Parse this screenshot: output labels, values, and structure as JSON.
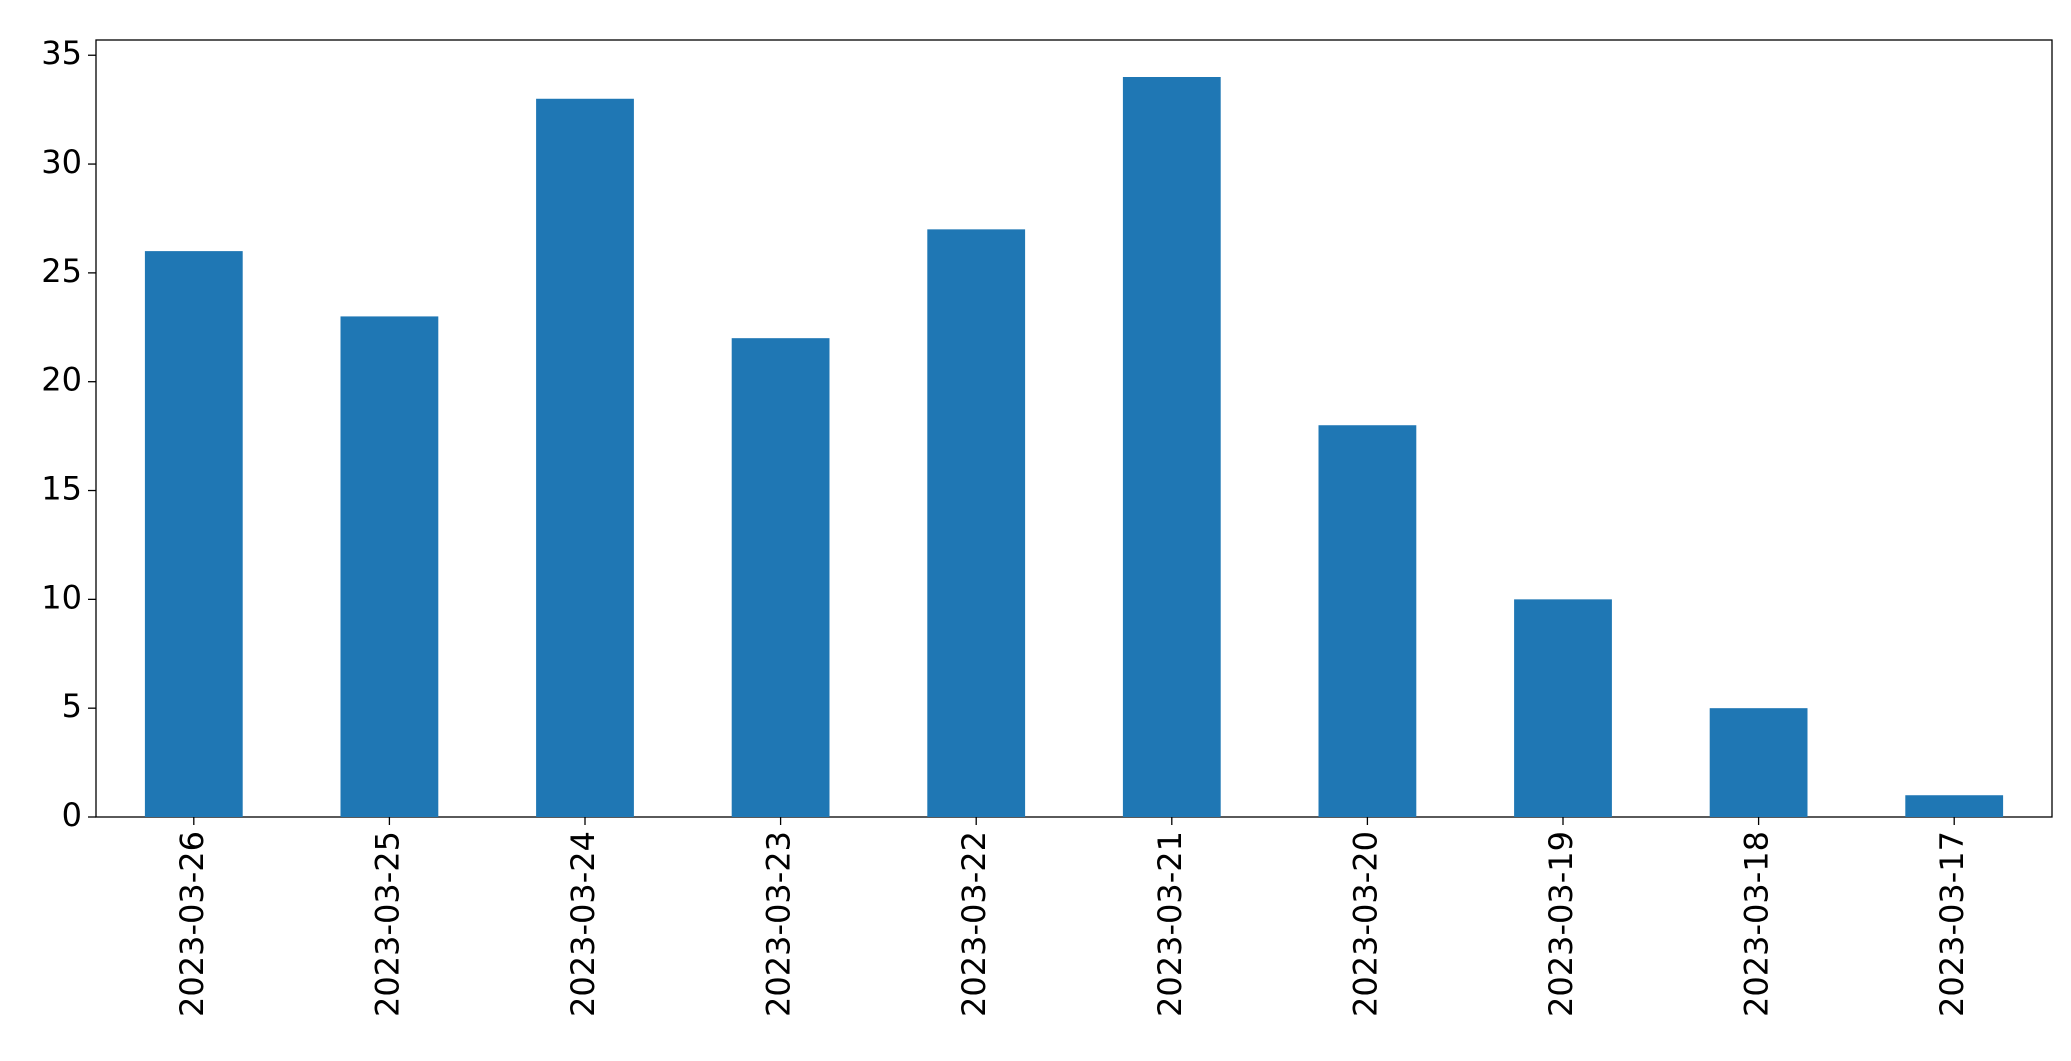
{
  "chart_data": {
    "type": "bar",
    "categories": [
      "2023-03-26",
      "2023-03-25",
      "2023-03-24",
      "2023-03-23",
      "2023-03-22",
      "2023-03-21",
      "2023-03-20",
      "2023-03-19",
      "2023-03-18",
      "2023-03-17"
    ],
    "values": [
      26,
      23,
      33,
      22,
      27,
      34,
      18,
      10,
      5,
      1
    ],
    "color": "#1f77b4",
    "ylim": [
      0,
      35.7
    ],
    "yticks": [
      0,
      5,
      10,
      15,
      20,
      25,
      30,
      35
    ],
    "grid": false
  }
}
